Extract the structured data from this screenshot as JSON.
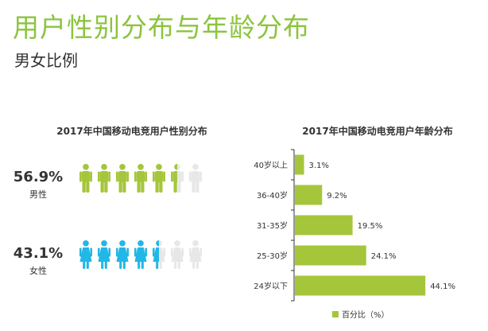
{
  "header": {
    "title": "用户性别分布与年龄分布",
    "subtitle": "男女比例"
  },
  "colors": {
    "accent": "#8cc43f",
    "male": "#a5c63b",
    "female": "#21b7e6",
    "icon_empty": "#e7e7e7",
    "bar": "#a5c63b"
  },
  "icons": {
    "male": "male-person-icon",
    "female": "female-person-icon"
  },
  "chart_data": [
    {
      "type": "pictogram",
      "title": "2017年中国移动电竞用户性别分布",
      "icons_per_row": 7,
      "series": [
        {
          "name": "男性",
          "value": 56.9,
          "value_label": "56.9%",
          "icons_filled": 5.5
        },
        {
          "name": "女性",
          "value": 43.1,
          "value_label": "43.1%",
          "icons_filled": 4.5
        }
      ]
    },
    {
      "type": "bar",
      "orientation": "horizontal",
      "title": "2017年中国移动电竞用户年龄分布",
      "categories": [
        "40岁以上",
        "36-40岁",
        "31-35岁",
        "25-30岁",
        "24岁以下"
      ],
      "values": [
        3.1,
        9.2,
        19.5,
        24.1,
        44.1
      ],
      "value_labels": [
        "3.1%",
        "9.2%",
        "19.5%",
        "24.1%",
        "44.1%"
      ],
      "xlim": [
        0,
        47
      ],
      "legend": {
        "label": "百分比（%）",
        "position": "bottom"
      },
      "grid": false
    }
  ]
}
